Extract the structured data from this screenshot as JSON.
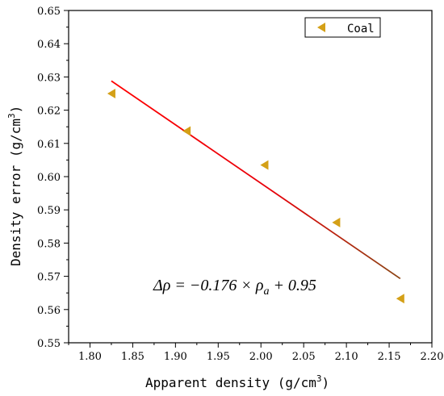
{
  "chart_data": {
    "type": "scatter",
    "xlabel": "Apparent density (g/cm",
    "xlabel_sup": "3",
    "xlabel_end": ")",
    "ylabel": "Density error (g/cm",
    "ylabel_sup": "3",
    "ylabel_end": ")",
    "xlim": [
      1.775,
      2.2
    ],
    "ylim": [
      0.55,
      0.65
    ],
    "x_ticks": [
      "1.80",
      "1.85",
      "1.90",
      "1.95",
      "2.00",
      "2.05",
      "2.10",
      "2.15",
      "2.20"
    ],
    "y_ticks": [
      "0.55",
      "0.56",
      "0.57",
      "0.58",
      "0.59",
      "0.60",
      "0.61",
      "0.62",
      "0.63",
      "0.64",
      "0.65"
    ],
    "series": [
      {
        "name": "Coal",
        "marker": "left-triangle",
        "color": "#d4a017",
        "points": [
          {
            "x": 1.825,
            "y": 0.625
          },
          {
            "x": 1.913,
            "y": 0.6137
          },
          {
            "x": 2.004,
            "y": 0.6035
          },
          {
            "x": 2.088,
            "y": 0.5862
          },
          {
            "x": 2.163,
            "y": 0.5633
          }
        ]
      }
    ],
    "fit_line": {
      "slope": -0.176,
      "intercept": 0.95,
      "x_range": [
        1.825,
        2.163
      ],
      "colors": [
        "#ff0000",
        "#8b4513"
      ]
    },
    "equation": {
      "prefix": "Δρ = −0.176 × ρ",
      "sub": "a",
      "suffix": " + 0.95"
    },
    "legend": {
      "position": "top-right"
    },
    "grid": false
  }
}
